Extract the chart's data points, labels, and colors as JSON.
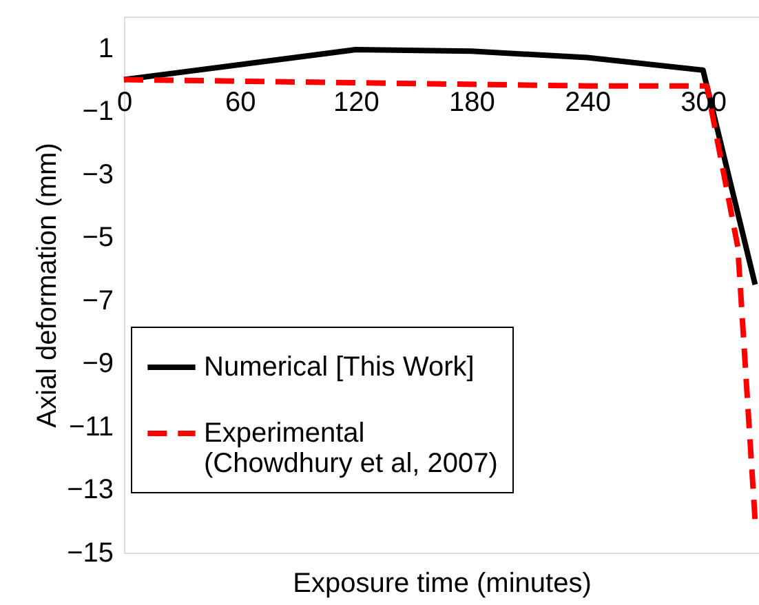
{
  "chart_data": {
    "type": "line",
    "xlabel": "Exposure time (minutes)",
    "ylabel": "Axial deformation (mm)",
    "xlim": [
      0,
      329
    ],
    "xticks": [
      0,
      60,
      120,
      180,
      240,
      300
    ],
    "ylim": [
      -15,
      2
    ],
    "yticks": [
      1,
      -1,
      -3,
      -5,
      -7,
      -9,
      -11,
      -13,
      -15
    ],
    "grid": false,
    "legend": "bottom left",
    "marker": "none",
    "series": [
      {
        "name": "Numerical [This Work]",
        "color": "#000000",
        "line_style": "solid",
        "x": [
          0,
          120,
          180,
          240,
          300,
          327
        ],
        "values": [
          0,
          0.95,
          0.9,
          0.7,
          0.3,
          -6.5
        ]
      },
      {
        "name": "Experimental\n(Chowdhury et al, 2007)",
        "color": "#ff0000",
        "line_style": "dashed",
        "x": [
          0,
          120,
          240,
          302,
          318,
          327
        ],
        "values": [
          0,
          -0.1,
          -0.2,
          -0.2,
          -5.3,
          -14
        ]
      }
    ]
  }
}
